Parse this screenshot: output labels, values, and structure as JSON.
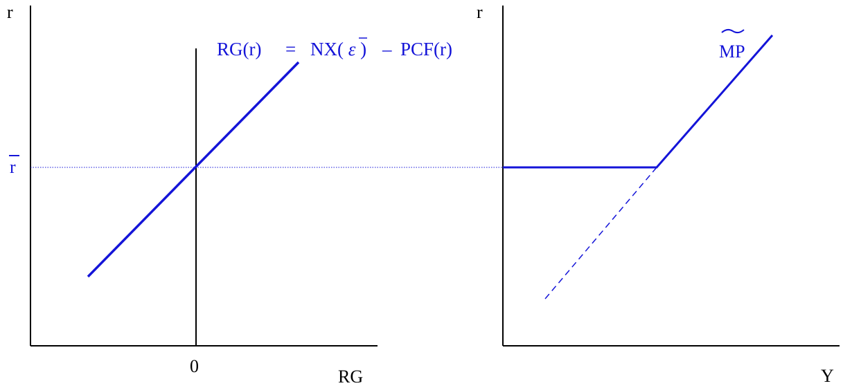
{
  "left_panel": {
    "y_axis_label": "r",
    "x_axis_label": "RG",
    "zero_tick_label": "0",
    "r_bar_label": "r",
    "curve_label": {
      "lhs": "RG(r)",
      "equals": "=",
      "nx": "NX(",
      "epsilon": "ε",
      "close": ")",
      "minus": "–",
      "pcf": "PCF(r)"
    }
  },
  "right_panel": {
    "y_axis_label": "r",
    "x_axis_label": "Y",
    "curve_label": "MP",
    "curve_tilde": "~"
  },
  "colors": {
    "curve": "#1414d8",
    "axes": "#000000"
  }
}
